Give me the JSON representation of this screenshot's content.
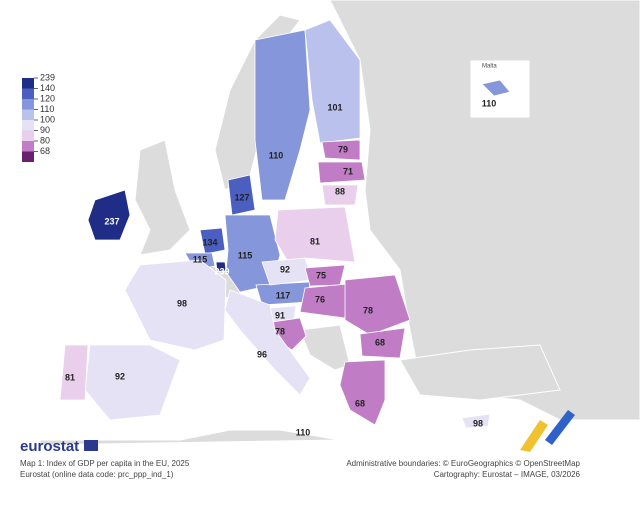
{
  "legend": {
    "values": [
      239,
      140,
      120,
      110,
      100,
      90,
      80,
      68
    ],
    "colors": [
      "#1f2d86",
      "#4a5fbf",
      "#8596db",
      "#b9c1ec",
      "#e4e2f4",
      "#e9cfec",
      "#c07cc5",
      "#6b1f6f"
    ]
  },
  "inset_title": "Malta",
  "regions": {
    "values": [
      237,
      239,
      134,
      115,
      127,
      115,
      117,
      110,
      101,
      79,
      71,
      88,
      81,
      92,
      75,
      76,
      78,
      68,
      91,
      78,
      96,
      98,
      92,
      81,
      68,
      98,
      110,
      110
    ]
  },
  "brand": "eurostat",
  "caption": "Map 1: Index of GDP per capita in the EU, 2025",
  "source": "Eurostat (online data code: prc_ppp_ind_1)",
  "boundaries": "Administrative boundaries: © EuroGeographics © OpenStreetMap",
  "cartography": "Cartography: Eurostat – IMAGE, 03/2026"
}
